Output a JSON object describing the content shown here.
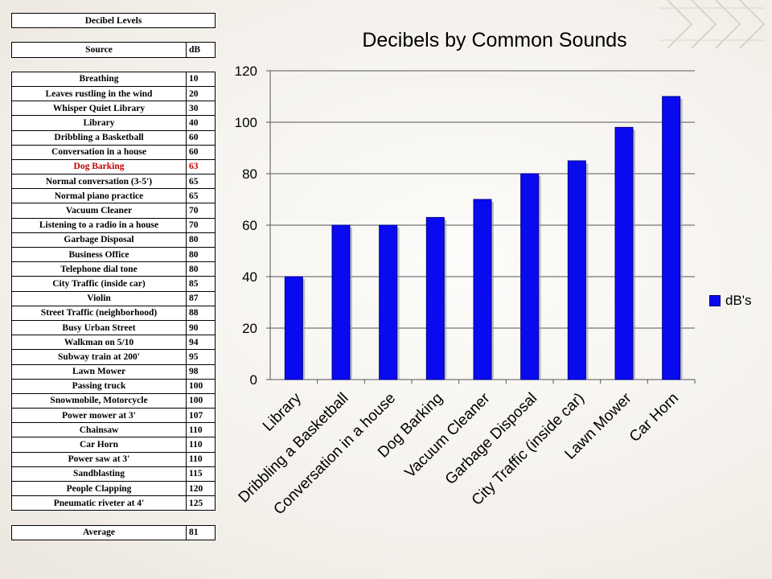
{
  "table": {
    "caption": "Decibel Levels",
    "header": {
      "source": "Source",
      "db": "dB"
    },
    "rows": [
      {
        "source": "Breathing",
        "db": "10"
      },
      {
        "source": "Leaves rustling in the wind",
        "db": "20"
      },
      {
        "source": "Whisper Quiet Library",
        "db": "30"
      },
      {
        "source": "Library",
        "db": "40"
      },
      {
        "source": "Dribbling a Basketball",
        "db": "60"
      },
      {
        "source": "Conversation in a house",
        "db": "60"
      },
      {
        "source": "Dog Barking",
        "db": "63"
      },
      {
        "source": "Normal conversation (3-5')",
        "db": "65"
      },
      {
        "source": "Normal piano practice",
        "db": "65"
      },
      {
        "source": "Vacuum Cleaner",
        "db": "70"
      },
      {
        "source": "Listening to a radio in a house",
        "db": "70"
      },
      {
        "source": "Garbage Disposal",
        "db": "80"
      },
      {
        "source": "Business Office",
        "db": "80"
      },
      {
        "source": "Telephone dial tone",
        "db": "80"
      },
      {
        "source": "City Traffic (inside car)",
        "db": "85"
      },
      {
        "source": "Violin",
        "db": "87"
      },
      {
        "source": "Street Traffic (neighborhood)",
        "db": "88"
      },
      {
        "source": "Busy Urban Street",
        "db": "90"
      },
      {
        "source": "Walkman on 5/10",
        "db": "94"
      },
      {
        "source": "Subway train at 200'",
        "db": "95"
      },
      {
        "source": "Lawn Mower",
        "db": "98"
      },
      {
        "source": "Passing truck",
        "db": "100"
      },
      {
        "source": "Snowmobile, Motorcycle",
        "db": "100"
      },
      {
        "source": "Power mower at 3'",
        "db": "107"
      },
      {
        "source": "Chainsaw",
        "db": "110"
      },
      {
        "source": "Car Horn",
        "db": "110"
      },
      {
        "source": "Power saw at 3'",
        "db": "110"
      },
      {
        "source": "Sandblasting",
        "db": "115"
      },
      {
        "source": "People Clapping",
        "db": "120"
      },
      {
        "source": "Pneumatic riveter at 4'",
        "db": "125"
      }
    ],
    "average": {
      "label": "Average",
      "db": "81"
    },
    "highlight_color": "#c00000"
  },
  "chart_data": {
    "type": "bar",
    "title": "Decibels by Common Sounds",
    "categories": [
      "Library",
      "Dribbling a Basketball",
      "Conversation in a house",
      "Dog Barking",
      "Vacuum Cleaner",
      "Garbage Disposal",
      "City Traffic (inside car)",
      "Lawn Mower",
      "Car Horn"
    ],
    "series": [
      {
        "name": "dB's",
        "values": [
          40,
          60,
          60,
          63,
          70,
          80,
          85,
          98,
          110
        ],
        "color": "#0a0af0"
      }
    ],
    "yticks": [
      "0",
      "20",
      "40",
      "60",
      "80",
      "100",
      "120"
    ],
    "ylim": [
      0,
      120
    ],
    "grid": true,
    "legend_position": "right"
  }
}
